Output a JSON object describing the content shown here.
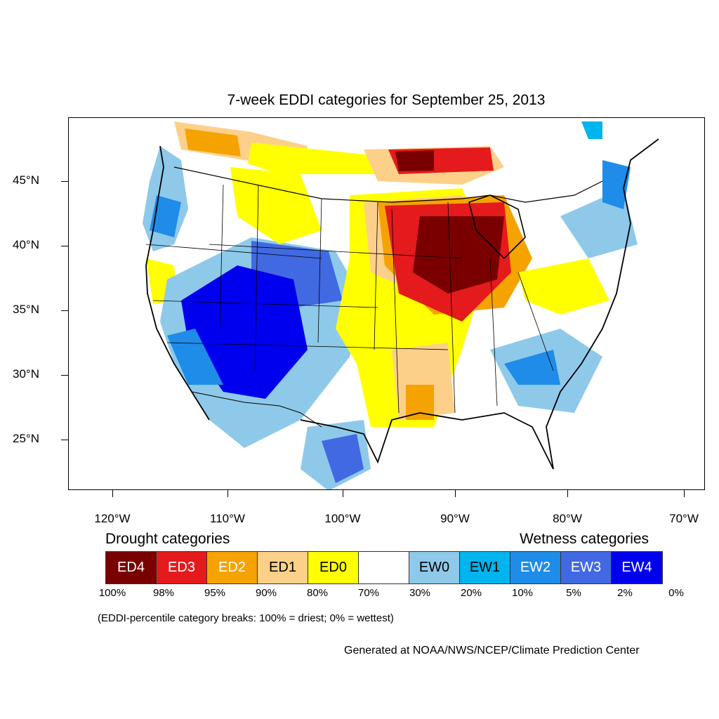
{
  "title": "7-week EDDI categories for September 25, 2013",
  "latitude_labels": [
    "45°N",
    "40°N",
    "35°N",
    "30°N",
    "25°N"
  ],
  "longitude_labels": [
    "120°W",
    "110°W",
    "100°W",
    "90°W",
    "80°W",
    "70°W"
  ],
  "legend": {
    "drought_heading": "Drought categories",
    "wetness_heading": "Wetness categories",
    "categories": [
      {
        "label": "ED4",
        "color": "#7a0000",
        "text_color": "#ffffff"
      },
      {
        "label": "ED3",
        "color": "#e41a1c",
        "text_color": "#ffffff"
      },
      {
        "label": "ED2",
        "color": "#f5a300",
        "text_color": "#ffffff"
      },
      {
        "label": "ED1",
        "color": "#fdd08a",
        "text_color": "#000000"
      },
      {
        "label": "ED0",
        "color": "#ffff00",
        "text_color": "#000000"
      },
      {
        "label": "",
        "color": "#ffffff",
        "text_color": "#000000"
      },
      {
        "label": "EW0",
        "color": "#8ec9ea",
        "text_color": "#000000"
      },
      {
        "label": "EW1",
        "color": "#00b4ee",
        "text_color": "#000000"
      },
      {
        "label": "EW2",
        "color": "#1e8ce8",
        "text_color": "#ffffff"
      },
      {
        "label": "EW3",
        "color": "#4169e1",
        "text_color": "#ffffff"
      },
      {
        "label": "EW4",
        "color": "#0000ee",
        "text_color": "#ffffff"
      }
    ],
    "breaks": [
      "100%",
      "98%",
      "95%",
      "90%",
      "80%",
      "70%",
      "30%",
      "20%",
      "10%",
      "5%",
      "2%",
      "0%"
    ]
  },
  "note": "(EDDI-percentile category breaks: 100% = driest; 0% = wettest)",
  "credit": "Generated at NOAA/NWS/NCEP/Climate Prediction Center"
}
